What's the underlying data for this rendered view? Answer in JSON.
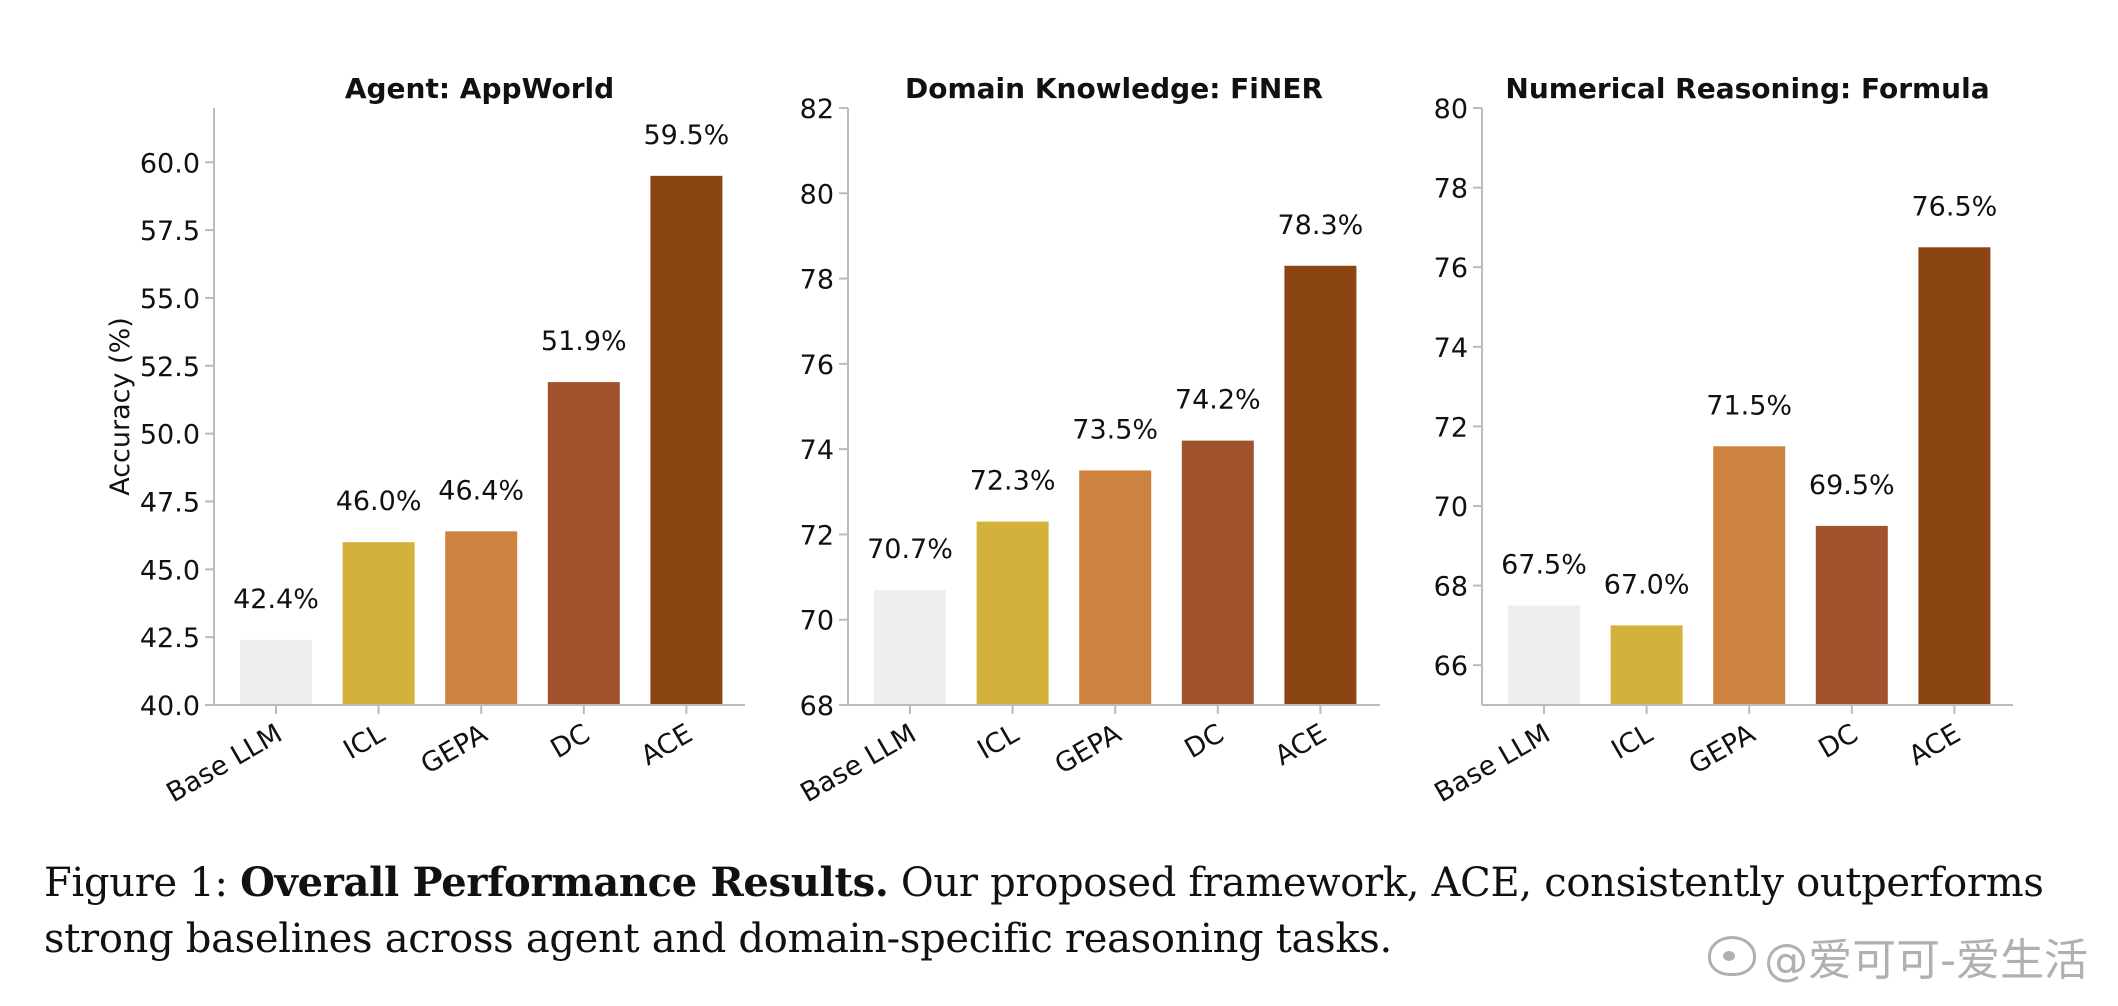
{
  "chart_data": [
    {
      "type": "bar",
      "title": "Agent: AppWorld",
      "ylabel": "Accuracy (%)",
      "categories": [
        "Base LLM",
        "ICL",
        "GEPA",
        "DC",
        "ACE"
      ],
      "values": [
        42.4,
        46.0,
        46.4,
        51.9,
        59.5
      ],
      "data_labels": [
        "42.4%",
        "46.0%",
        "46.4%",
        "51.9%",
        "59.5%"
      ],
      "ylim": [
        40.0,
        62.0
      ],
      "yticks": [
        "40.0",
        "42.5",
        "45.0",
        "47.5",
        "50.0",
        "52.5",
        "55.0",
        "57.5",
        "60.0"
      ],
      "ytick_values": [
        40.0,
        42.5,
        45.0,
        47.5,
        50.0,
        52.5,
        55.0,
        57.5,
        60.0
      ]
    },
    {
      "type": "bar",
      "title": "Domain Knowledge: FiNER",
      "ylabel": "",
      "categories": [
        "Base LLM",
        "ICL",
        "GEPA",
        "DC",
        "ACE"
      ],
      "values": [
        70.7,
        72.3,
        73.5,
        74.2,
        78.3
      ],
      "data_labels": [
        "70.7%",
        "72.3%",
        "73.5%",
        "74.2%",
        "78.3%"
      ],
      "ylim": [
        68,
        82
      ],
      "yticks": [
        "68",
        "70",
        "72",
        "74",
        "76",
        "78",
        "80",
        "82"
      ],
      "ytick_values": [
        68,
        70,
        72,
        74,
        76,
        78,
        80,
        82
      ]
    },
    {
      "type": "bar",
      "title": "Numerical Reasoning: Formula",
      "ylabel": "",
      "categories": [
        "Base LLM",
        "ICL",
        "GEPA",
        "DC",
        "ACE"
      ],
      "values": [
        67.5,
        67.0,
        71.5,
        69.5,
        76.5
      ],
      "data_labels": [
        "67.5%",
        "67.0%",
        "71.5%",
        "69.5%",
        "76.5%"
      ],
      "ylim": [
        65,
        80
      ],
      "yticks": [
        "66",
        "68",
        "70",
        "72",
        "74",
        "76",
        "78",
        "80"
      ],
      "ytick_values": [
        66,
        68,
        70,
        72,
        74,
        76,
        78,
        80
      ]
    }
  ],
  "colors": {
    "bars": [
      "#efefef",
      "#d4b13a",
      "#cd833f",
      "#a0522d",
      "#8b4513"
    ],
    "axis": "#bbbbbb"
  },
  "caption": {
    "label": "Figure 1:",
    "bold": "Overall Performance Results.",
    "text": "Our proposed framework, ACE, consistently outperforms strong baselines across agent and domain-specific reasoning tasks."
  },
  "watermark": {
    "text": "@爱可可-爱生活",
    "icon": "weibo-icon"
  }
}
